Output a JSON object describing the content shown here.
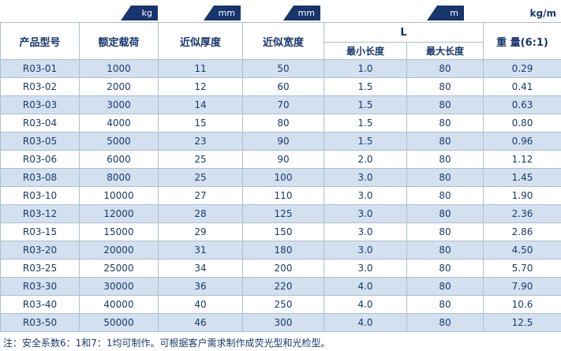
{
  "units": [
    {
      "label": "kg"
    },
    {
      "label": "mm"
    },
    {
      "label": "mm"
    },
    {
      "label": "m"
    },
    {
      "label": "kg/m"
    }
  ],
  "table": {
    "headers": {
      "model": "产品型号",
      "load": "额定载荷",
      "thickness": "近似厚度",
      "width": "近似宽度",
      "length_group": "L",
      "min_length": "最小长度",
      "max_length": "最大长度",
      "weight": "重 量(6:1)"
    },
    "rows": [
      [
        "R03-01",
        "1000",
        "11",
        "50",
        "1.0",
        "80",
        "0.29"
      ],
      [
        "R03-02",
        "2000",
        "12",
        "60",
        "1.5",
        "80",
        "0.41"
      ],
      [
        "R03-03",
        "3000",
        "14",
        "70",
        "1.5",
        "80",
        "0.63"
      ],
      [
        "R03-04",
        "4000",
        "15",
        "80",
        "1.5",
        "80",
        "0.80"
      ],
      [
        "R03-05",
        "5000",
        "23",
        "90",
        "1.5",
        "80",
        "0.96"
      ],
      [
        "R03-06",
        "6000",
        "25",
        "90",
        "2.0",
        "80",
        "1.12"
      ],
      [
        "R03-08",
        "8000",
        "25",
        "100",
        "3.0",
        "80",
        "1.45"
      ],
      [
        "R03-10",
        "10000",
        "27",
        "110",
        "3.0",
        "80",
        "1.90"
      ],
      [
        "R03-12",
        "12000",
        "28",
        "125",
        "3.0",
        "80",
        "2.36"
      ],
      [
        "R03-15",
        "15000",
        "29",
        "150",
        "3.0",
        "80",
        "2.86"
      ],
      [
        "R03-20",
        "20000",
        "31",
        "180",
        "3.0",
        "80",
        "4.50"
      ],
      [
        "R03-25",
        "25000",
        "34",
        "200",
        "3.0",
        "80",
        "5.70"
      ],
      [
        "R03-30",
        "30000",
        "36",
        "220",
        "4.0",
        "80",
        "7.90"
      ],
      [
        "R03-40",
        "40000",
        "40",
        "250",
        "4.0",
        "80",
        "10.6"
      ],
      [
        "R03-50",
        "50000",
        "46",
        "300",
        "4.0",
        "80",
        "12.5"
      ]
    ]
  },
  "footnote": "注：安全系数6：1和7：1均可制作。可根据客户需求制作成荧光型和光检型。",
  "colors": {
    "flag_navy": "#17366e",
    "row_alt_blue": "#d2e0ef",
    "text_navy": "#1b3a6b",
    "border": "#aebfcc"
  }
}
